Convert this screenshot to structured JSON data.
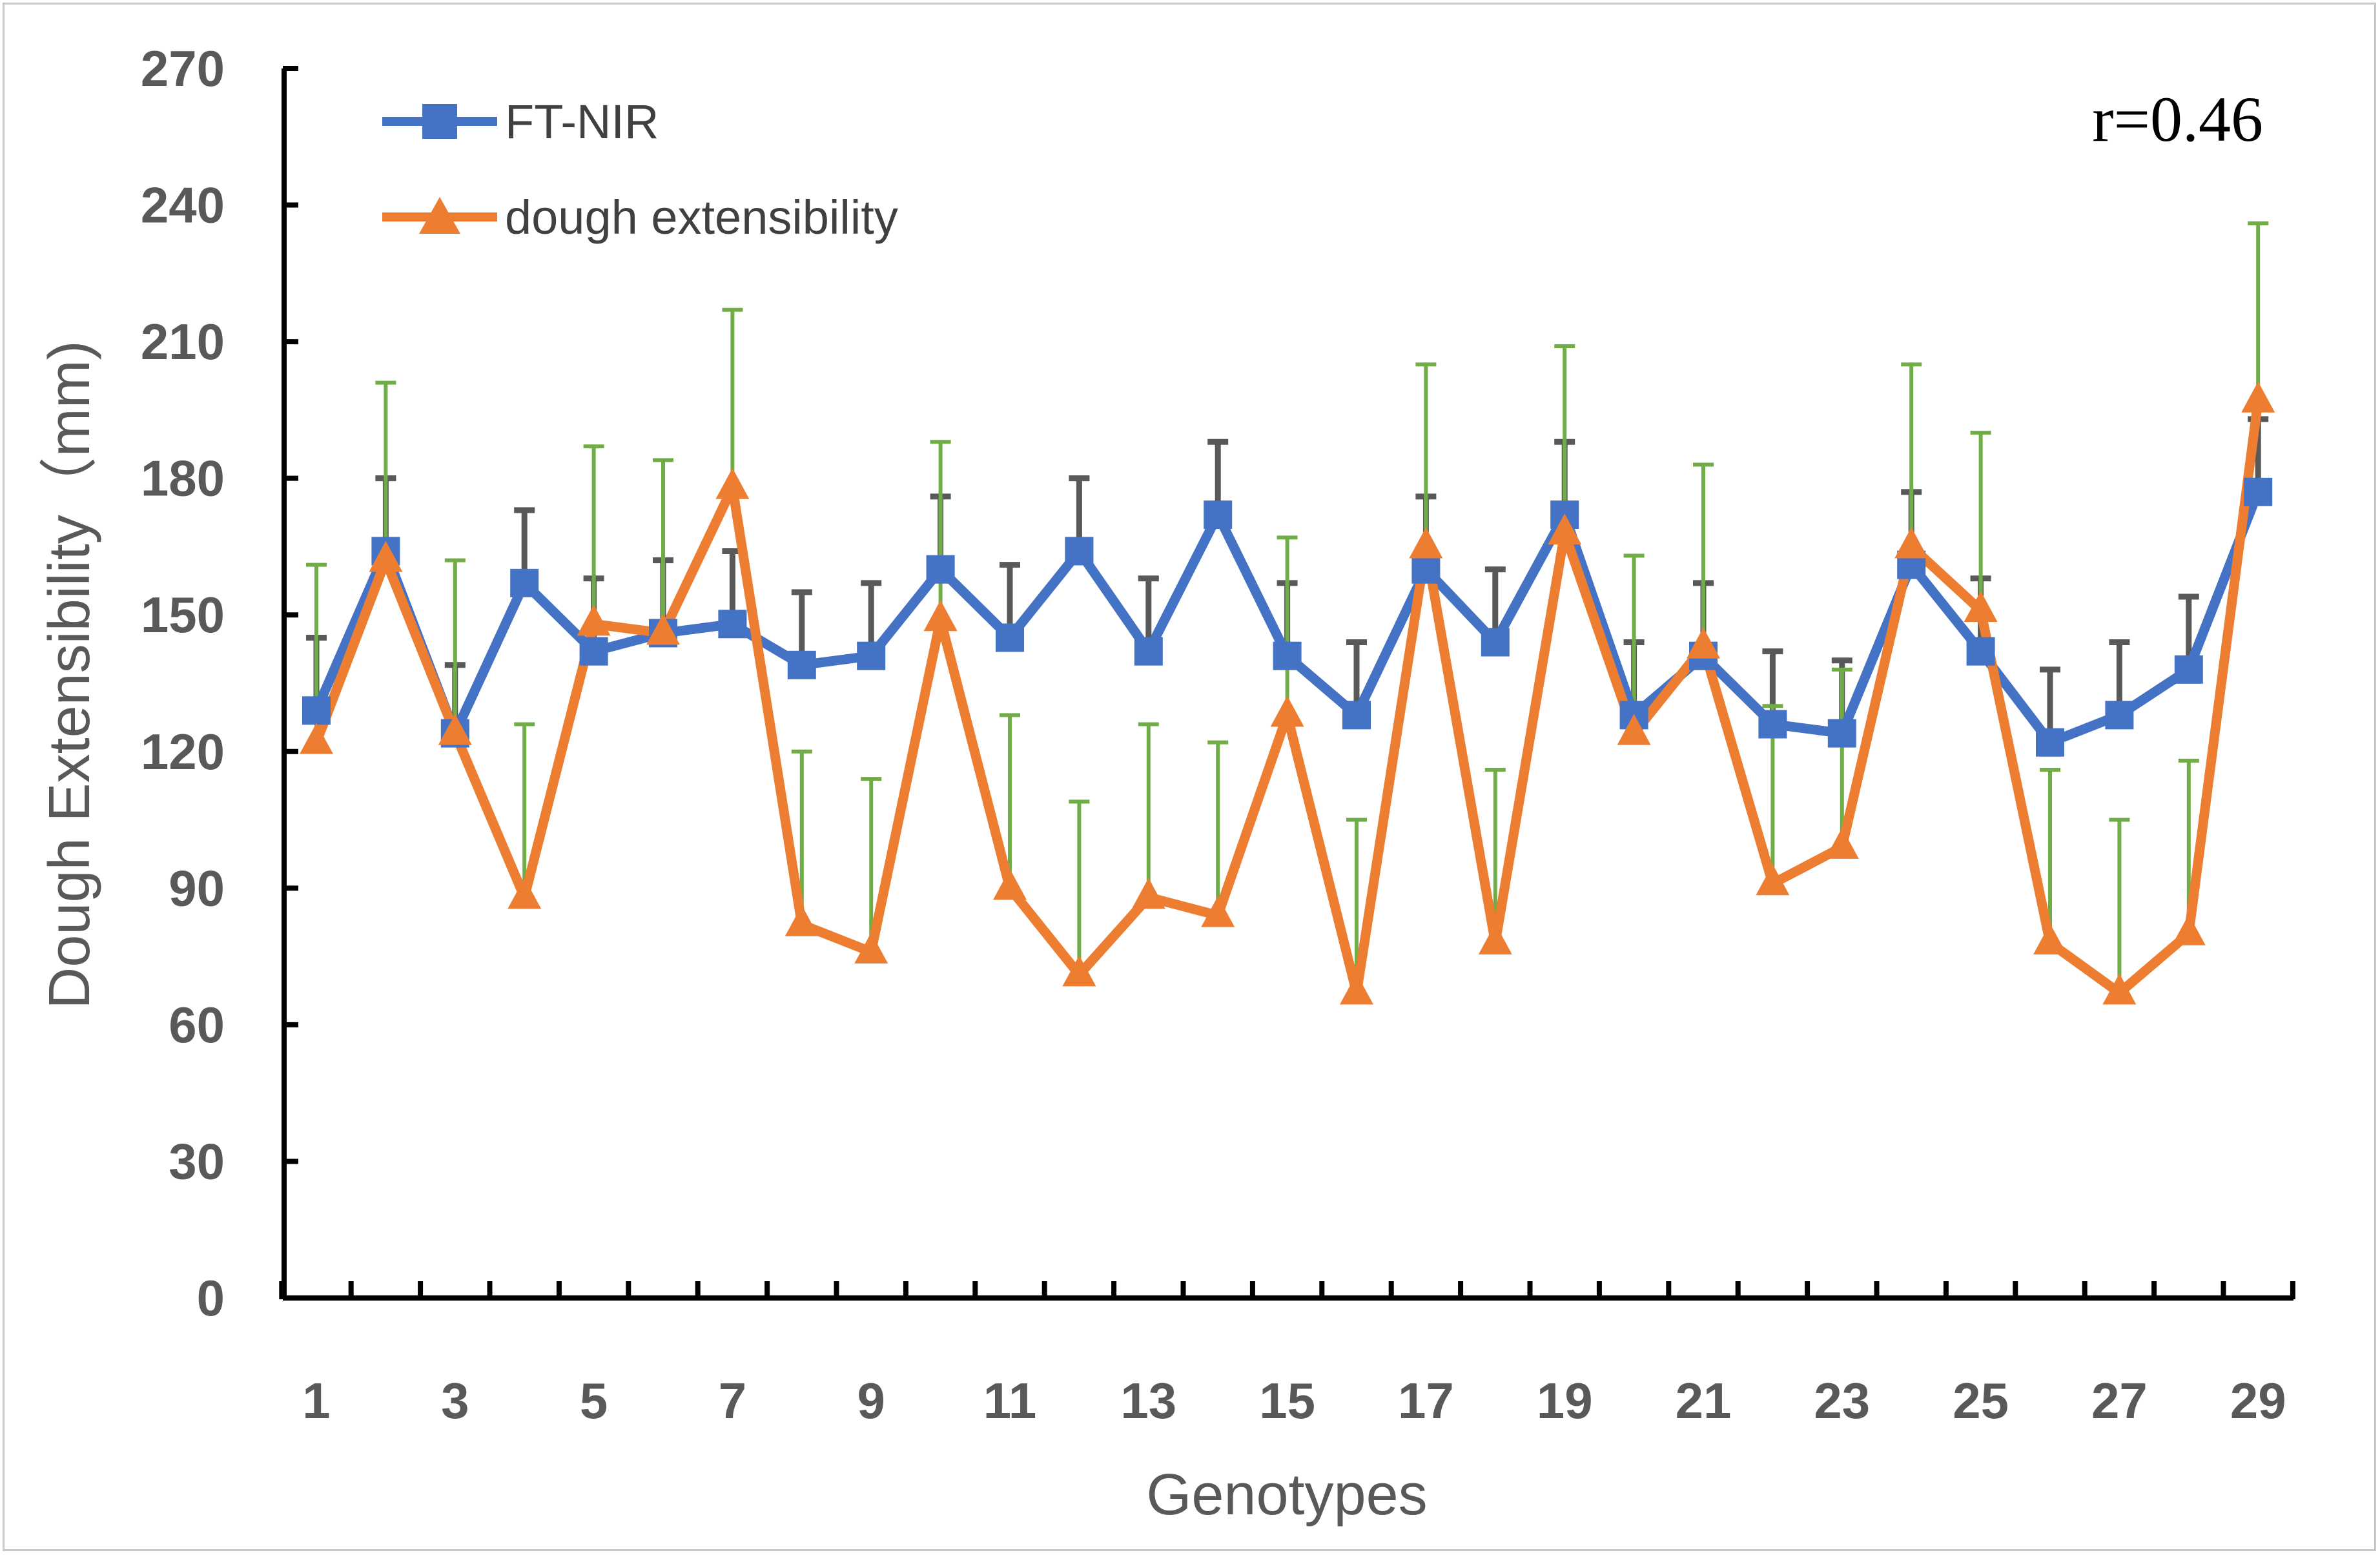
{
  "chart_data": {
    "type": "line",
    "title": "",
    "xlabel": "Genotypes",
    "ylabel": "Dough Extensibility（mm)",
    "ylim": [
      0,
      270
    ],
    "yticks": [
      0,
      30,
      60,
      90,
      120,
      150,
      180,
      210,
      240,
      270
    ],
    "x": [
      1,
      2,
      3,
      4,
      5,
      6,
      7,
      8,
      9,
      10,
      11,
      12,
      13,
      14,
      15,
      16,
      17,
      18,
      19,
      20,
      21,
      22,
      23,
      24,
      25,
      26,
      27,
      28,
      29
    ],
    "xtick_labels": [
      "1",
      "3",
      "5",
      "7",
      "9",
      "11",
      "13",
      "15",
      "17",
      "19",
      "21",
      "23",
      "25",
      "27",
      "29"
    ],
    "annotation": "r=0.46",
    "legend_position": "top-left",
    "series": [
      {
        "name": "FT-NIR",
        "color": "#4472c4",
        "error_color": "#595959",
        "marker": "square",
        "values": [
          129,
          164,
          124,
          157,
          142,
          146,
          148,
          139,
          141,
          160,
          145,
          164,
          142,
          172,
          141,
          128,
          160,
          144,
          172,
          128,
          141,
          126,
          124,
          161,
          142,
          122,
          128,
          138,
          177
        ],
        "errors": [
          16,
          16,
          15,
          16,
          16,
          16,
          16,
          16,
          16,
          16,
          16,
          16,
          16,
          16,
          16,
          16,
          16,
          16,
          16,
          16,
          16,
          16,
          16,
          16,
          16,
          16,
          16,
          16,
          16
        ]
      },
      {
        "name": "dough extensibility",
        "color": "#ed7d31",
        "error_color": "#70ad47",
        "marker": "triangle",
        "values": [
          122,
          162,
          124,
          88,
          148,
          146,
          178,
          82,
          76,
          149,
          90,
          71,
          88,
          84,
          128,
          67,
          165,
          78,
          168,
          124,
          143,
          91,
          99,
          165,
          151,
          78,
          67,
          80,
          197
        ],
        "errors": [
          39,
          39,
          38,
          38,
          39,
          38,
          39,
          38,
          38,
          39,
          38,
          38,
          38,
          38,
          39,
          38,
          40,
          38,
          41,
          39,
          40,
          39,
          39,
          40,
          39,
          38,
          38,
          38,
          39
        ]
      }
    ]
  }
}
